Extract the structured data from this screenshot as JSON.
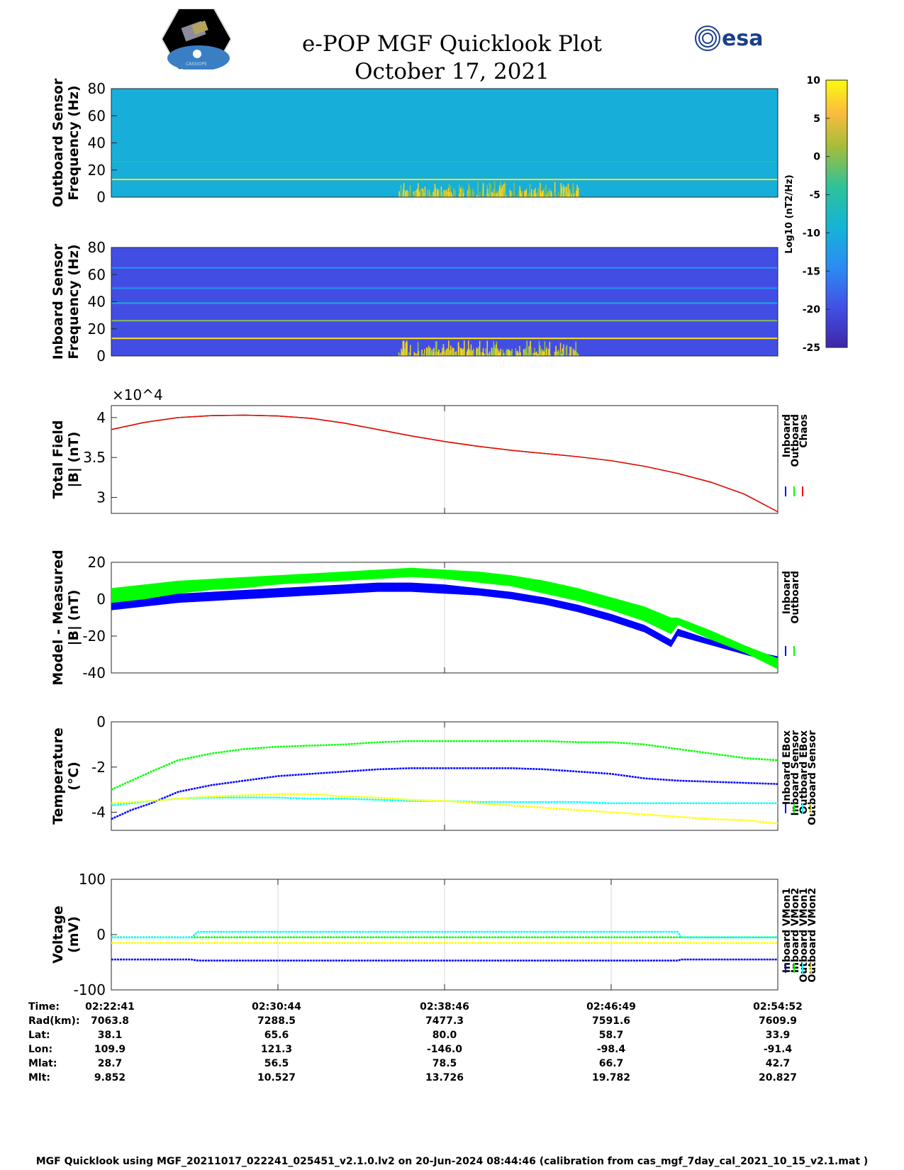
{
  "title": {
    "line1": "e-POP MGF Quicklook Plot",
    "line2": "October 17, 2021"
  },
  "logos": {
    "mission_text": "CASSIOPE",
    "agency_text": "esa"
  },
  "colorbar": {
    "label": "Log10 (nT2/Hz)",
    "ticks": [
      10,
      5,
      0,
      -5,
      -10,
      -15,
      -20,
      -25
    ],
    "range": [
      -25,
      10
    ]
  },
  "chart_data": [
    {
      "id": "outboard-spectrogram",
      "type": "heatmap",
      "ylabel": [
        "Outboard Sensor",
        "Frequency (Hz)"
      ],
      "ylim": [
        0,
        80
      ],
      "yticks": [
        0,
        20,
        40,
        60,
        80
      ],
      "background_level": -10,
      "lines_hz": [
        {
          "freq": 13,
          "level": 8
        },
        {
          "freq": 26,
          "level": -7
        }
      ],
      "burst_window": "02:36–02:46 UT, 0–8 Hz"
    },
    {
      "id": "inboard-spectrogram",
      "type": "heatmap",
      "ylabel": [
        "Inboard Sensor",
        "Frequency (Hz)"
      ],
      "ylim": [
        0,
        80
      ],
      "yticks": [
        0,
        20,
        40,
        60,
        80
      ],
      "background_level": -20,
      "lines_hz": [
        {
          "freq": 13,
          "level": 8
        },
        {
          "freq": 26,
          "level": 0
        },
        {
          "freq": 39,
          "level": -10
        },
        {
          "freq": 50,
          "level": -14
        },
        {
          "freq": 65,
          "level": -14
        }
      ],
      "burst_window": "02:36–02:46 UT, 0–8 Hz"
    },
    {
      "id": "total-field",
      "type": "line",
      "ylabel": [
        "Total Field",
        "|B| (nT)"
      ],
      "ylim": [
        28000,
        41500
      ],
      "yticks": [
        30000,
        35000,
        40000
      ],
      "ytick_labels": [
        "3",
        "3.5",
        "4"
      ],
      "exponent_label": "×10^4",
      "x": [
        0,
        0.05,
        0.1,
        0.15,
        0.2,
        0.25,
        0.3,
        0.35,
        0.4,
        0.45,
        0.5,
        0.55,
        0.6,
        0.65,
        0.7,
        0.75,
        0.8,
        0.85,
        0.9,
        0.95,
        1.0
      ],
      "series": [
        {
          "name": "Inboard",
          "color": "#0000ff",
          "values": [
            38500,
            39400,
            40000,
            40250,
            40300,
            40200,
            39900,
            39300,
            38500,
            37700,
            37000,
            36400,
            35900,
            35500,
            35100,
            34600,
            33900,
            33000,
            31900,
            30400,
            28200
          ]
        },
        {
          "name": "Outboard",
          "color": "#00ff00",
          "values": [
            38500,
            39400,
            40000,
            40250,
            40300,
            40200,
            39900,
            39300,
            38500,
            37700,
            37000,
            36400,
            35900,
            35500,
            35100,
            34600,
            33900,
            33000,
            31900,
            30400,
            28200
          ]
        },
        {
          "name": "Chaos",
          "color": "#ff0000",
          "values": [
            38500,
            39400,
            40000,
            40250,
            40300,
            40200,
            39900,
            39300,
            38500,
            37700,
            37000,
            36400,
            35900,
            35500,
            35100,
            34600,
            33900,
            33000,
            31900,
            30400,
            28200
          ]
        }
      ]
    },
    {
      "id": "model-minus-measured",
      "type": "area",
      "ylabel": [
        "Model - Measured",
        "|B| (nT)"
      ],
      "ylim": [
        -40,
        20
      ],
      "yticks": [
        -40,
        -20,
        0,
        20
      ],
      "x": [
        0,
        0.05,
        0.1,
        0.15,
        0.2,
        0.25,
        0.3,
        0.35,
        0.4,
        0.45,
        0.5,
        0.55,
        0.6,
        0.65,
        0.7,
        0.75,
        0.8,
        0.84,
        0.85,
        0.9,
        0.95,
        1.0
      ],
      "series": [
        {
          "name": "Inboard",
          "color": "#0000ff",
          "low": [
            -6,
            -4,
            -2,
            -1,
            0,
            1,
            2,
            3,
            4,
            4,
            3,
            2,
            0,
            -3,
            -7,
            -12,
            -18,
            -26,
            -20,
            -25,
            -30,
            -35
          ],
          "high": [
            0,
            2,
            3,
            4,
            5,
            6,
            7,
            8,
            9,
            9,
            8,
            6,
            4,
            1,
            -3,
            -8,
            -14,
            -22,
            -16,
            -22,
            -27,
            -31
          ]
        },
        {
          "name": "Outboard",
          "color": "#00ff00",
          "low": [
            -2,
            0,
            3,
            5,
            6,
            8,
            9,
            10,
            11,
            12,
            11,
            9,
            7,
            3,
            -1,
            -6,
            -12,
            -19,
            -14,
            -22,
            -29,
            -38
          ],
          "high": [
            6,
            8,
            10,
            11,
            12,
            13,
            14,
            15,
            16,
            17,
            16,
            15,
            13,
            10,
            6,
            1,
            -4,
            -10,
            -10,
            -17,
            -25,
            -32
          ]
        }
      ]
    },
    {
      "id": "temperature",
      "type": "line",
      "ylabel": [
        "Temperature",
        "(°C)"
      ],
      "ylim": [
        -4.8,
        0
      ],
      "yticks": [
        -4,
        -2,
        0
      ],
      "x": [
        0,
        0.03,
        0.06,
        0.1,
        0.15,
        0.2,
        0.25,
        0.3,
        0.35,
        0.4,
        0.45,
        0.5,
        0.55,
        0.6,
        0.65,
        0.7,
        0.75,
        0.8,
        0.85,
        0.9,
        0.95,
        1.0
      ],
      "series": [
        {
          "name": "Inboard EBox",
          "color": "#0000ff",
          "values": [
            -4.3,
            -3.9,
            -3.6,
            -3.1,
            -2.8,
            -2.6,
            -2.4,
            -2.3,
            -2.2,
            -2.1,
            -2.05,
            -2.05,
            -2.05,
            -2.05,
            -2.1,
            -2.2,
            -2.3,
            -2.5,
            -2.6,
            -2.65,
            -2.7,
            -2.75
          ]
        },
        {
          "name": "Inboard Sensor",
          "color": "#00ff00",
          "values": [
            -3.0,
            -2.6,
            -2.2,
            -1.7,
            -1.4,
            -1.2,
            -1.1,
            -1.05,
            -1.0,
            -0.9,
            -0.85,
            -0.85,
            -0.85,
            -0.85,
            -0.85,
            -0.9,
            -0.9,
            -1.0,
            -1.2,
            -1.4,
            -1.6,
            -1.7
          ]
        },
        {
          "name": "Outboard EBox",
          "color": "#00ffff",
          "values": [
            -3.7,
            -3.6,
            -3.5,
            -3.4,
            -3.35,
            -3.35,
            -3.35,
            -3.4,
            -3.4,
            -3.45,
            -3.5,
            -3.5,
            -3.55,
            -3.55,
            -3.55,
            -3.55,
            -3.6,
            -3.6,
            -3.6,
            -3.6,
            -3.6,
            -3.6
          ]
        },
        {
          "name": "Outboard Sensor",
          "color": "#ffff00",
          "values": [
            -3.6,
            -3.55,
            -3.5,
            -3.4,
            -3.3,
            -3.25,
            -3.2,
            -3.2,
            -3.3,
            -3.35,
            -3.45,
            -3.5,
            -3.6,
            -3.7,
            -3.8,
            -3.9,
            -4.0,
            -4.1,
            -4.2,
            -4.3,
            -4.35,
            -4.5
          ]
        }
      ]
    },
    {
      "id": "voltage",
      "type": "line",
      "ylabel": [
        "Voltage",
        "(mV)"
      ],
      "ylim": [
        -100,
        100
      ],
      "yticks": [
        -100,
        0,
        100
      ],
      "x": [
        0,
        0.12,
        0.13,
        0.85,
        0.855,
        1.0
      ],
      "series": [
        {
          "name": "Inboard VMon1",
          "color": "#0000ff",
          "values": [
            -45,
            -45,
            -47,
            -47,
            -45,
            -45
          ]
        },
        {
          "name": "Inboard VMon2",
          "color": "#00ff00",
          "values": [
            -5,
            -5,
            -5,
            -5,
            -5,
            -5
          ]
        },
        {
          "name": "Outboard VMon1",
          "color": "#00ffff",
          "values": [
            -5,
            -5,
            5,
            5,
            -5,
            -5
          ]
        },
        {
          "name": "Outboard VMon2",
          "color": "#ffff00",
          "values": [
            -15,
            -15,
            -15,
            -15,
            -15,
            -15
          ]
        }
      ]
    }
  ],
  "ephemeris": {
    "rows": [
      {
        "label": "Time:",
        "values": [
          "02:22:41",
          "02:30:44",
          "02:38:46",
          "02:46:49",
          "02:54:52"
        ]
      },
      {
        "label": "Rad(km):",
        "values": [
          "7063.8",
          "7288.5",
          "7477.3",
          "7591.6",
          "7609.9"
        ]
      },
      {
        "label": "Lat:",
        "values": [
          "38.1",
          "65.6",
          "80.0",
          "58.7",
          "33.9"
        ]
      },
      {
        "label": "Lon:",
        "values": [
          "109.9",
          "121.3",
          "-146.0",
          "-98.4",
          "-91.4"
        ]
      },
      {
        "label": "Mlat:",
        "values": [
          "28.7",
          "56.5",
          "78.5",
          "66.7",
          "42.7"
        ]
      },
      {
        "label": "Mlt:",
        "values": [
          "9.852",
          "10.527",
          "13.726",
          "19.782",
          "20.827"
        ]
      }
    ]
  },
  "footer": "MGF Quicklook using MGF_20211017_022241_025451_v2.1.0.lv2 on 20-Jun-2024 08:44:46 (calibration from cas_mgf_7day_cal_2021_10_15_v2.1.mat )"
}
